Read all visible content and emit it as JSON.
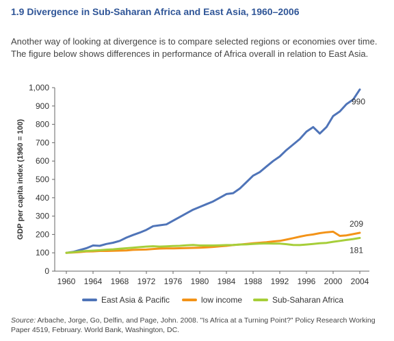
{
  "figure": {
    "title": "1.9 Divergence in Sub-Saharan Africa and East Asia, 1960–2006",
    "intro": "Another way of looking at divergence is to compare selected regions or economies over time. The figure below shows differences in performance of Africa overall in relation to East Asia.",
    "source_label": "Source:",
    "source_text": " Arbache, Jorge, Go, Delfin, and Page, John. 2008. \"Is Africa at a Turning Point?\" Policy Research Working Paper 4519, February. World Bank, Washington, DC."
  },
  "colors": {
    "title": "#2F5597",
    "east_asia": "#4F74B8",
    "low_income": "#F39318",
    "ssa": "#A6CE39",
    "axis": "#666666"
  },
  "chart_data": {
    "type": "line",
    "ylabel": "GDP per capita index (1960 = 100)",
    "xlabel": "",
    "xlim": [
      1960,
      2004
    ],
    "ylim": [
      0,
      1000
    ],
    "x_ticks": [
      1960,
      1964,
      1968,
      1972,
      1976,
      1980,
      1984,
      1988,
      1992,
      1996,
      2000,
      2004
    ],
    "y_ticks": [
      0,
      100,
      200,
      300,
      400,
      500,
      600,
      700,
      800,
      900,
      1000
    ],
    "y_tick_labels": [
      "0",
      "100",
      "200",
      "300",
      "400",
      "500",
      "600",
      "700",
      "800",
      "900",
      "1,000"
    ],
    "x": [
      1960,
      1961,
      1962,
      1963,
      1964,
      1965,
      1966,
      1967,
      1968,
      1969,
      1970,
      1971,
      1972,
      1973,
      1974,
      1975,
      1976,
      1977,
      1978,
      1979,
      1980,
      1981,
      1982,
      1983,
      1984,
      1985,
      1986,
      1987,
      1988,
      1989,
      1990,
      1991,
      1992,
      1993,
      1994,
      1995,
      1996,
      1997,
      1998,
      1999,
      2000,
      2001,
      2002,
      2003,
      2004
    ],
    "series": [
      {
        "name": "East Asia & Pacific",
        "color": "#4F74B8",
        "values": [
          100,
          105,
          115,
          125,
          140,
          138,
          148,
          155,
          165,
          183,
          197,
          210,
          225,
          245,
          250,
          255,
          275,
          295,
          315,
          335,
          350,
          365,
          380,
          400,
          420,
          425,
          450,
          485,
          520,
          540,
          570,
          600,
          625,
          660,
          690,
          720,
          760,
          785,
          750,
          785,
          845,
          870,
          910,
          935,
          990
        ]
      },
      {
        "name": "low income",
        "color": "#F39318",
        "values": [
          100,
          102,
          104,
          107,
          108,
          110,
          110,
          111,
          112,
          113,
          116,
          117,
          118,
          121,
          123,
          124,
          124,
          125,
          126,
          127,
          128,
          130,
          132,
          135,
          138,
          142,
          145,
          148,
          152,
          155,
          158,
          162,
          165,
          172,
          180,
          188,
          195,
          200,
          207,
          212,
          215,
          192,
          195,
          202,
          209
        ]
      },
      {
        "name": "Sub-Saharan Africa",
        "color": "#A6CE39",
        "values": [
          100,
          103,
          107,
          110,
          112,
          114,
          117,
          119,
          122,
          125,
          128,
          131,
          134,
          136,
          134,
          135,
          137,
          138,
          141,
          143,
          140,
          140,
          140,
          141,
          142,
          143,
          145,
          146,
          148,
          150,
          151,
          150,
          150,
          147,
          143,
          142,
          145,
          148,
          152,
          154,
          160,
          165,
          170,
          175,
          181
        ]
      }
    ],
    "end_labels": [
      "990",
      "209",
      "181"
    ],
    "legend_position": "bottom",
    "grid": false
  }
}
